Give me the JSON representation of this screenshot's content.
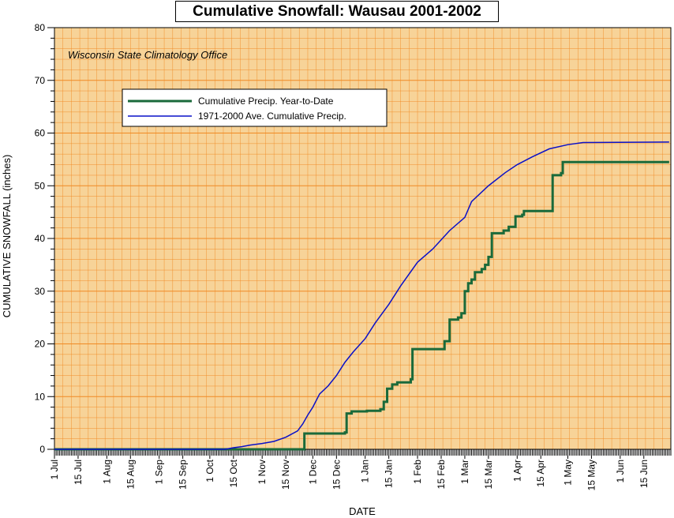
{
  "chart_data": {
    "type": "line",
    "title": "Cumulative Snowfall: Wausau 2001-2002",
    "annotation": "Wisconsin State Climatology Office",
    "xlabel": "DATE",
    "ylabel": "CUMULATIVE SNOWFALL (inches)",
    "ylim": [
      0,
      80
    ],
    "yticks": [
      "0",
      "10",
      "20",
      "30",
      "40",
      "50",
      "60",
      "70",
      "80"
    ],
    "x_tick_labels": [
      "1 Jul",
      "15 Jul",
      "1 Aug",
      "15 Aug",
      "1 Sep",
      "15 Sep",
      "1 Oct",
      "15 Oct",
      "1 Nov",
      "15 Nov",
      "1 Dec",
      "15 Dec",
      "1 Jan",
      "15 Jan",
      "1 Feb",
      "15 Feb",
      "1 Mar",
      "15 Mar",
      "1 Apr",
      "15 Apr",
      "1 May",
      "15 May",
      "1 Jun",
      "15 Jun"
    ],
    "x_range": [
      "2001-07-01",
      "2002-06-30"
    ],
    "grid": true,
    "legend_position": "top-left",
    "background_color": "#f7d398",
    "grid_color": "#f08a24",
    "series": [
      {
        "name": "Cumulative Precip. Year-to-Date",
        "color": "#1a6a3a",
        "step": true,
        "points": [
          [
            "2001-07-01",
            0
          ],
          [
            "2001-11-24",
            0
          ],
          [
            "2001-11-26",
            3.0
          ],
          [
            "2001-12-20",
            3.2
          ],
          [
            "2001-12-21",
            6.8
          ],
          [
            "2001-12-24",
            7.2
          ],
          [
            "2002-01-02",
            7.3
          ],
          [
            "2002-01-10",
            7.6
          ],
          [
            "2002-01-12",
            9.0
          ],
          [
            "2002-01-14",
            11.5
          ],
          [
            "2002-01-17",
            12.3
          ],
          [
            "2002-01-20",
            12.7
          ],
          [
            "2002-01-28",
            13.3
          ],
          [
            "2002-01-29",
            19.0
          ],
          [
            "2002-02-14",
            19.0
          ],
          [
            "2002-02-17",
            20.5
          ],
          [
            "2002-02-20",
            24.6
          ],
          [
            "2002-02-25",
            25.0
          ],
          [
            "2002-02-27",
            25.8
          ],
          [
            "2002-03-01",
            30.0
          ],
          [
            "2002-03-03",
            31.5
          ],
          [
            "2002-03-05",
            32.2
          ],
          [
            "2002-03-07",
            33.6
          ],
          [
            "2002-03-11",
            34.2
          ],
          [
            "2002-03-13",
            35.0
          ],
          [
            "2002-03-15",
            36.5
          ],
          [
            "2002-03-17",
            41.0
          ],
          [
            "2002-03-24",
            41.5
          ],
          [
            "2002-03-27",
            42.2
          ],
          [
            "2002-03-31",
            44.2
          ],
          [
            "2002-04-04",
            44.5
          ],
          [
            "2002-04-05",
            45.2
          ],
          [
            "2002-04-21",
            45.2
          ],
          [
            "2002-04-22",
            52.0
          ],
          [
            "2002-04-27",
            52.4
          ],
          [
            "2002-04-28",
            54.5
          ],
          [
            "2002-06-30",
            54.5
          ]
        ]
      },
      {
        "name": "1971-2000 Ave. Cumulative Precip.",
        "color": "#0a10c8",
        "step": false,
        "points": [
          [
            "2001-07-01",
            0
          ],
          [
            "2001-10-10",
            0
          ],
          [
            "2001-10-15",
            0.3
          ],
          [
            "2001-10-20",
            0.5
          ],
          [
            "2001-10-25",
            0.8
          ],
          [
            "2001-11-01",
            1.1
          ],
          [
            "2001-11-08",
            1.5
          ],
          [
            "2001-11-15",
            2.3
          ],
          [
            "2001-11-22",
            3.5
          ],
          [
            "2001-11-25",
            4.8
          ],
          [
            "2001-11-28",
            6.5
          ],
          [
            "2001-12-01",
            8.0
          ],
          [
            "2001-12-05",
            10.5
          ],
          [
            "2001-12-10",
            12.0
          ],
          [
            "2001-12-15",
            14.0
          ],
          [
            "2001-12-20",
            16.5
          ],
          [
            "2001-12-25",
            18.5
          ],
          [
            "2002-01-01",
            21.0
          ],
          [
            "2002-01-07",
            24.0
          ],
          [
            "2002-01-15",
            27.5
          ],
          [
            "2002-01-22",
            31.0
          ],
          [
            "2002-02-01",
            35.5
          ],
          [
            "2002-02-10",
            38.0
          ],
          [
            "2002-02-20",
            41.5
          ],
          [
            "2002-03-01",
            44.0
          ],
          [
            "2002-03-05",
            47.0
          ],
          [
            "2002-03-15",
            50.0
          ],
          [
            "2002-03-25",
            52.5
          ],
          [
            "2002-04-01",
            54.0
          ],
          [
            "2002-04-10",
            55.5
          ],
          [
            "2002-04-20",
            57.0
          ],
          [
            "2002-05-01",
            57.8
          ],
          [
            "2002-05-10",
            58.2
          ],
          [
            "2002-06-30",
            58.3
          ]
        ]
      }
    ]
  }
}
